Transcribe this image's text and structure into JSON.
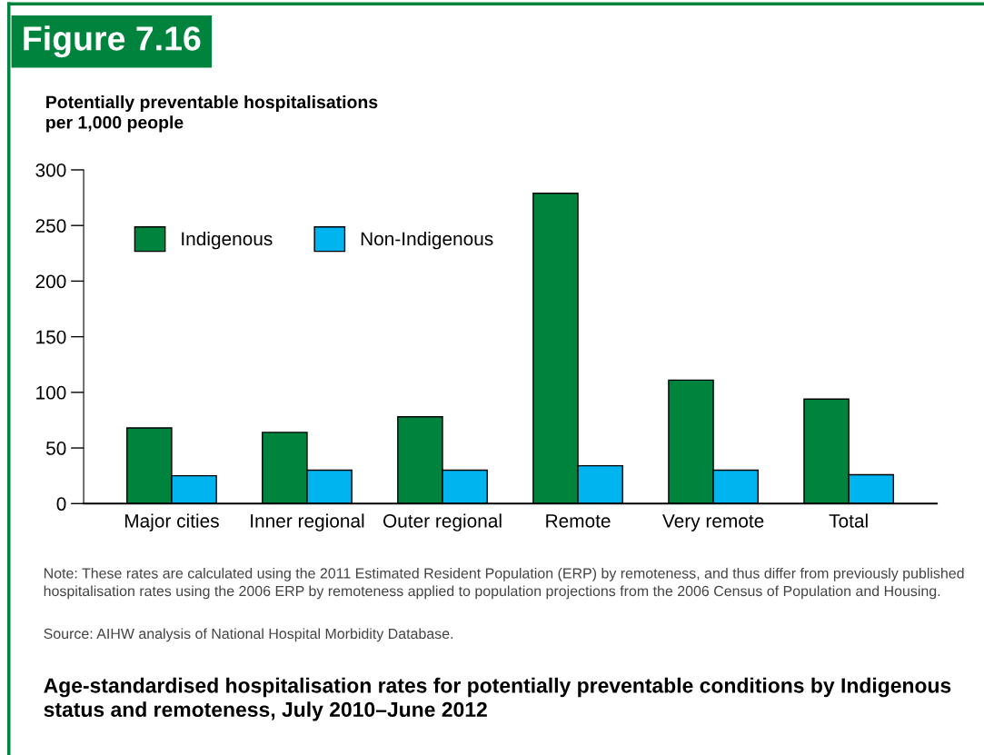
{
  "chart_data": {
    "type": "bar",
    "title": "Figure 7.16",
    "subtitle": "Age-standardised hospitalisation rates for potentially preventable conditions by Indigenous status and remoteness, July 2010–June 2012",
    "ylabel": "Potentially preventable hospitalisations\nper 1,000 people",
    "categories": [
      "Major cities",
      "Inner regional",
      "Outer regional",
      "Remote",
      "Very remote",
      "Total"
    ],
    "series": [
      {
        "name": "Indigenous",
        "color": "#00843d",
        "values": [
          68,
          64,
          78,
          279,
          111,
          94
        ]
      },
      {
        "name": "Non-Indigenous",
        "color": "#00b5ef",
        "values": [
          25,
          30,
          30,
          34,
          30,
          26
        ]
      }
    ],
    "ylim": [
      0,
      300
    ],
    "yticks": [
      0,
      50,
      100,
      150,
      200,
      250,
      300
    ],
    "grid": false,
    "legend": "top left",
    "annotations": [
      "Note: These rates are calculated using the 2011 Estimated Resident Population (ERP) by remoteness, and thus differ from previously published hospitalisation rates using the 2006 ERP by remoteness applied to population projections from the 2006 Census of Population and Housing.",
      "Source: AIHW analysis of National Hospital Morbidity Database."
    ]
  }
}
